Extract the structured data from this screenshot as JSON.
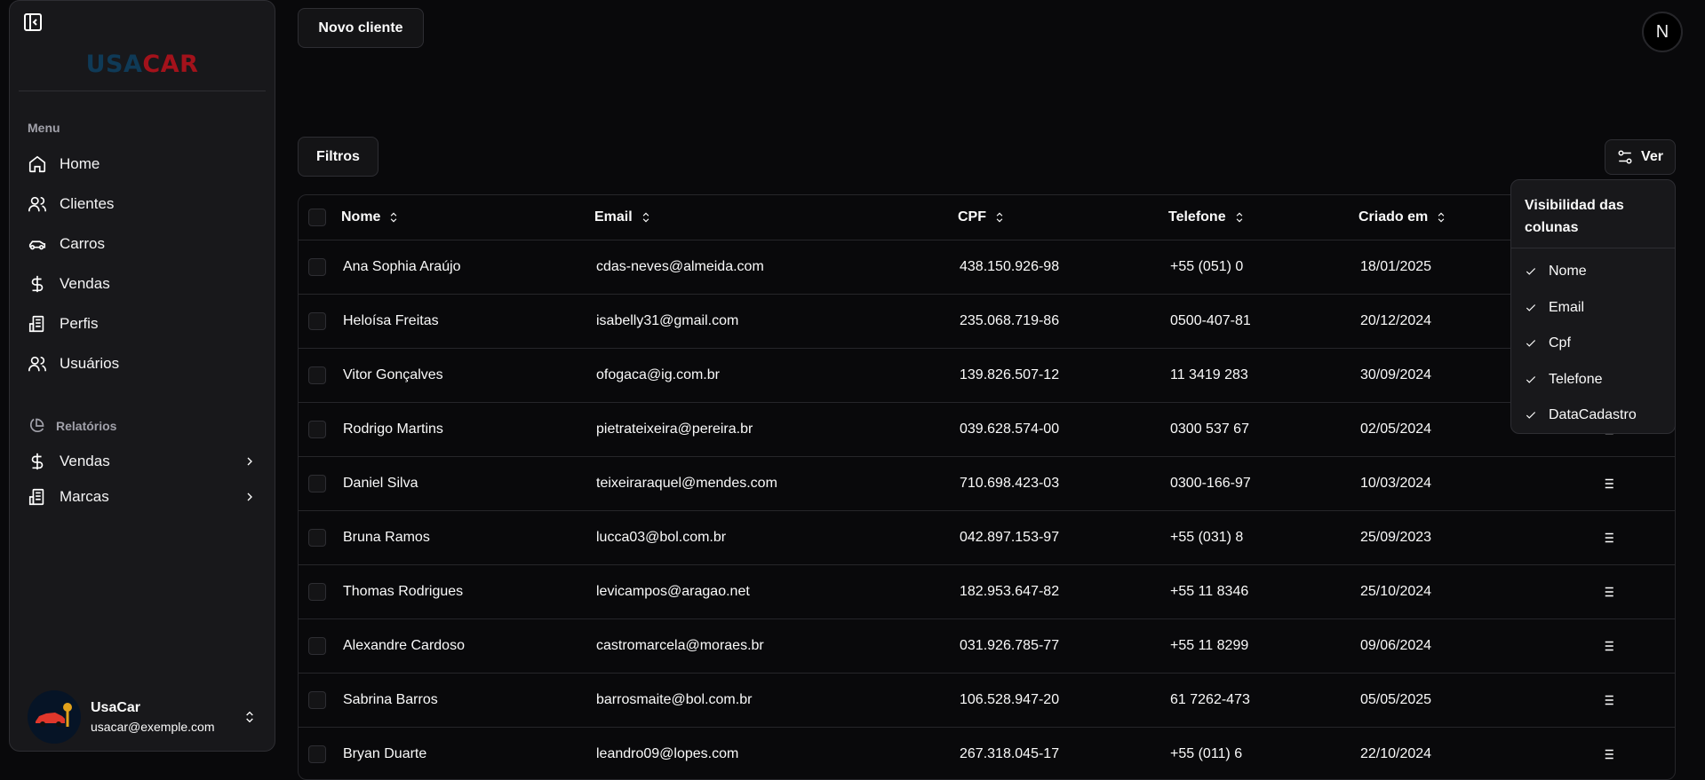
{
  "sidebar": {
    "logo": {
      "part1": "USA",
      "part2": "CAR",
      "color1": "#0f3a57",
      "color2": "#a3121b"
    },
    "menu_label": "Menu",
    "items": [
      {
        "label": "Home",
        "icon": "home-icon"
      },
      {
        "label": "Clientes",
        "icon": "users-icon"
      },
      {
        "label": "Carros",
        "icon": "car-icon"
      },
      {
        "label": "Vendas",
        "icon": "dollar-icon"
      },
      {
        "label": "Perfis",
        "icon": "building-icon"
      },
      {
        "label": "Usuários",
        "icon": "users-icon"
      }
    ],
    "reports_label": "Relatórios",
    "reports": [
      {
        "label": "Vendas",
        "icon": "dollar-icon"
      },
      {
        "label": "Marcas",
        "icon": "building-icon"
      }
    ],
    "user": {
      "name": "UsaCar",
      "email": "usacar@exemple.com"
    }
  },
  "header": {
    "new_client": "Novo cliente",
    "avatar_letter": "N"
  },
  "toolbar": {
    "filters": "Filtros",
    "view": "Ver"
  },
  "table": {
    "columns": [
      "Nome",
      "Email",
      "CPF",
      "Telefone",
      "Criado em"
    ],
    "rows": [
      [
        "Ana Sophia Araújo",
        "cdas-neves@almeida.com",
        "438.150.926-98",
        "+55 (051) 0",
        "18/01/2025"
      ],
      [
        "Heloísa Freitas",
        "isabelly31@gmail.com",
        "235.068.719-86",
        "0500-407-81",
        "20/12/2024"
      ],
      [
        "Vitor Gonçalves",
        "ofogaca@ig.com.br",
        "139.826.507-12",
        "11 3419 283",
        "30/09/2024"
      ],
      [
        "Rodrigo Martins",
        "pietrateixeira@pereira.br",
        "039.628.574-00",
        "0300 537 67",
        "02/05/2024"
      ],
      [
        "Daniel Silva",
        "teixeiraraquel@mendes.com",
        "710.698.423-03",
        "0300-166-97",
        "10/03/2024"
      ],
      [
        "Bruna Ramos",
        "lucca03@bol.com.br",
        "042.897.153-97",
        "+55 (031) 8",
        "25/09/2023"
      ],
      [
        "Thomas Rodrigues",
        "levicampos@aragao.net",
        "182.953.647-82",
        "+55 11 8346",
        "25/10/2024"
      ],
      [
        "Alexandre Cardoso",
        "castromarcela@moraes.br",
        "031.926.785-77",
        "+55 11 8299",
        "09/06/2024"
      ],
      [
        "Sabrina Barros",
        "barrosmaite@bol.com.br",
        "106.528.947-20",
        "61 7262-473",
        "05/05/2025"
      ],
      [
        "Bryan Duarte",
        "leandro09@lopes.com",
        "267.318.045-17",
        "+55 (011) 6",
        "22/10/2024"
      ]
    ]
  },
  "column_menu": {
    "title": "Visibilidad das colunas",
    "items": [
      {
        "label": "Nome",
        "checked": true
      },
      {
        "label": "Email",
        "checked": true
      },
      {
        "label": "Cpf",
        "checked": true
      },
      {
        "label": "Telefone",
        "checked": true
      },
      {
        "label": "DataCadastro",
        "checked": true
      }
    ]
  }
}
